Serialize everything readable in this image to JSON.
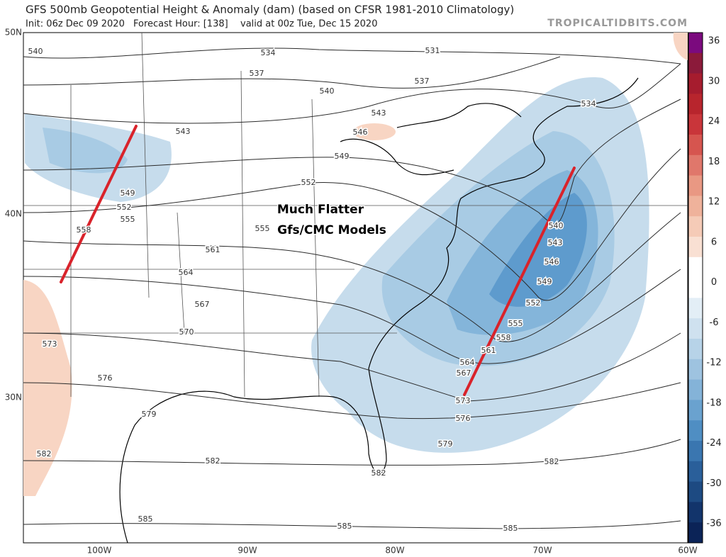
{
  "header": {
    "title": "GFS 500mb Geopotential Height & Anomaly (dam) (based on CFSR 1981-2010 Climatology)",
    "init": "Init: 06z Dec 09 2020",
    "forecast_hour": "Forecast Hour: [138]",
    "valid": "valid at 00z Tue, Dec 15 2020",
    "source": "TROPICALTIDBITS.COM"
  },
  "annotation": [
    "Much Flatter",
    "Gfs/CMC Models"
  ],
  "latitude_labels": [
    "50N",
    "40N",
    "30N"
  ],
  "longitude_labels": [
    "100W",
    "90W",
    "80W",
    "70W",
    "60W"
  ],
  "colorbar_labels": [
    36,
    30,
    24,
    18,
    12,
    6,
    0,
    -6,
    -12,
    -18,
    -24,
    -30,
    -36
  ],
  "contour_labels": [
    "540",
    "534",
    "531",
    "537",
    "537",
    "540",
    "534",
    "543",
    "546",
    "543",
    "549",
    "552",
    "549",
    "552",
    "555",
    "558",
    "555",
    "561",
    "564",
    "567",
    "570",
    "573",
    "576",
    "579",
    "582",
    "582",
    "585",
    "585",
    "585",
    "582",
    "582",
    "579",
    "576",
    "573",
    "567",
    "564",
    "561",
    "558",
    "555",
    "552",
    "549",
    "546",
    "543",
    "540"
  ]
}
